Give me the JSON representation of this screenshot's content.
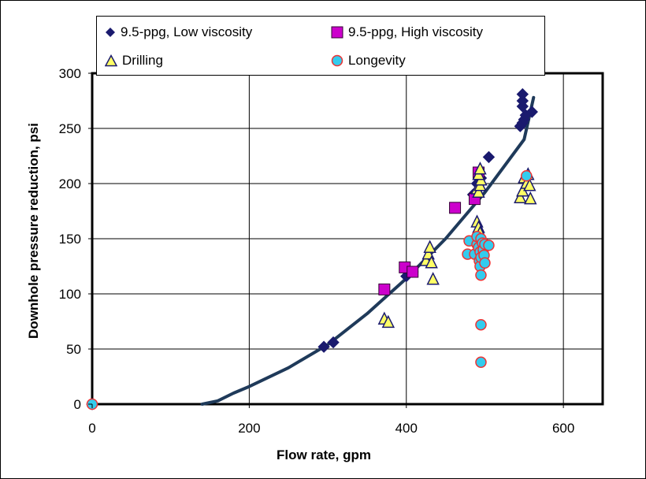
{
  "chart_data": {
    "type": "scatter",
    "xlabel": "Flow rate, gpm",
    "ylabel": "Downhole pressure reduction, psi",
    "xlim": [
      0,
      650
    ],
    "ylim": [
      0,
      300
    ],
    "x_ticks": [
      0,
      200,
      400,
      600
    ],
    "y_ticks": [
      0,
      50,
      100,
      150,
      200,
      250,
      300
    ],
    "x_tick_labels": [
      "0",
      "200",
      "400",
      "600"
    ],
    "y_tick_labels": [
      "0",
      "50",
      "100",
      "150",
      "200",
      "250",
      "300"
    ],
    "grid": true,
    "legend_position": "top",
    "series": [
      {
        "name": "9.5-ppg, Low viscosity",
        "marker": "diamond",
        "color": "#1a1a6e",
        "edge": "#1a1a6e",
        "points": [
          [
            0,
            0
          ],
          [
            295,
            52
          ],
          [
            307,
            56
          ],
          [
            400,
            116
          ],
          [
            408,
            120
          ],
          [
            485,
            190
          ],
          [
            490,
            200
          ],
          [
            495,
            205
          ],
          [
            505,
            224
          ],
          [
            545,
            252
          ],
          [
            548,
            255
          ],
          [
            550,
            258
          ],
          [
            552,
            262
          ],
          [
            548,
            270
          ],
          [
            548,
            275
          ],
          [
            548,
            281
          ],
          [
            560,
            265
          ]
        ]
      },
      {
        "name": "9.5-ppg, High viscosity",
        "marker": "square",
        "color": "#cc00cc",
        "edge": "#330033",
        "points": [
          [
            372,
            104
          ],
          [
            398,
            124
          ],
          [
            408,
            120
          ],
          [
            462,
            178
          ],
          [
            487,
            186
          ],
          [
            492,
            210
          ]
        ]
      },
      {
        "name": "Drilling",
        "marker": "triangle",
        "color": "#ffff66",
        "edge": "#1a1a6e",
        "points": [
          [
            372,
            77
          ],
          [
            377,
            74
          ],
          [
            425,
            130
          ],
          [
            428,
            136
          ],
          [
            430,
            142
          ],
          [
            432,
            128
          ],
          [
            434,
            113
          ],
          [
            490,
            165
          ],
          [
            492,
            160
          ],
          [
            494,
            155
          ],
          [
            490,
            195
          ],
          [
            492,
            192
          ],
          [
            494,
            198
          ],
          [
            495,
            203
          ],
          [
            492,
            208
          ],
          [
            494,
            213
          ],
          [
            545,
            187
          ],
          [
            548,
            193
          ],
          [
            550,
            205
          ],
          [
            553,
            200
          ],
          [
            555,
            208
          ],
          [
            558,
            186
          ],
          [
            557,
            198
          ]
        ]
      },
      {
        "name": "Longevity",
        "marker": "circle",
        "color": "#33ccee",
        "edge": "#ee3333",
        "points": [
          [
            0,
            0
          ],
          [
            478,
            136
          ],
          [
            480,
            148
          ],
          [
            487,
            136
          ],
          [
            490,
            145
          ],
          [
            490,
            152
          ],
          [
            492,
            142
          ],
          [
            493,
            130
          ],
          [
            494,
            138
          ],
          [
            494,
            125
          ],
          [
            495,
            133
          ],
          [
            495,
            117
          ],
          [
            495,
            72
          ],
          [
            495,
            38
          ],
          [
            495,
            150
          ],
          [
            497,
            146
          ],
          [
            498,
            140
          ],
          [
            499,
            135
          ],
          [
            500,
            145
          ],
          [
            500,
            128
          ],
          [
            505,
            144
          ],
          [
            553,
            207
          ]
        ]
      }
    ],
    "trendline": {
      "color": "#1f3a5a",
      "points": [
        [
          140,
          0
        ],
        [
          160,
          3
        ],
        [
          180,
          10
        ],
        [
          200,
          16
        ],
        [
          250,
          33
        ],
        [
          300,
          54
        ],
        [
          350,
          82
        ],
        [
          400,
          114
        ],
        [
          450,
          150
        ],
        [
          500,
          192
        ],
        [
          550,
          240
        ],
        [
          562,
          278
        ]
      ]
    }
  }
}
